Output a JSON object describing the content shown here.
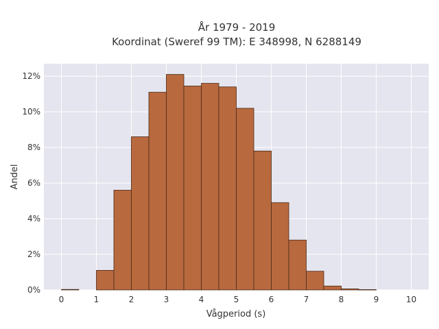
{
  "chart_data": {
    "type": "bar",
    "title_lines": [
      "År 1979 - 2019",
      "Koordinat (Sweref 99 TM): E 348998, N 6288149"
    ],
    "xlabel": "Vågperiod (s)",
    "ylabel": "Andel",
    "xlim": [
      -0.5,
      10.5
    ],
    "ylim": [
      0,
      12.7
    ],
    "x_ticks": [
      0,
      1,
      2,
      3,
      4,
      5,
      6,
      7,
      8,
      9,
      10
    ],
    "y_ticks": [
      0,
      2,
      4,
      6,
      8,
      10,
      12
    ],
    "y_tick_labels": [
      "0%",
      "2%",
      "4%",
      "6%",
      "8%",
      "10%",
      "12%"
    ],
    "bin_width": 0.5,
    "bins": [
      {
        "start": 0.0,
        "value": 0.03
      },
      {
        "start": 0.5,
        "value": 0.0
      },
      {
        "start": 1.0,
        "value": 1.1
      },
      {
        "start": 1.5,
        "value": 5.6
      },
      {
        "start": 2.0,
        "value": 8.6
      },
      {
        "start": 2.5,
        "value": 11.1
      },
      {
        "start": 3.0,
        "value": 12.1
      },
      {
        "start": 3.5,
        "value": 11.45
      },
      {
        "start": 4.0,
        "value": 11.6
      },
      {
        "start": 4.5,
        "value": 11.4
      },
      {
        "start": 5.0,
        "value": 10.2
      },
      {
        "start": 5.5,
        "value": 7.8
      },
      {
        "start": 6.0,
        "value": 4.9
      },
      {
        "start": 6.5,
        "value": 2.8
      },
      {
        "start": 7.0,
        "value": 1.05
      },
      {
        "start": 7.5,
        "value": 0.22
      },
      {
        "start": 8.0,
        "value": 0.06
      },
      {
        "start": 8.5,
        "value": 0.02
      }
    ],
    "grid": true,
    "colors": {
      "bar_fill": "#b8693e",
      "bar_edge": "#4a2a18",
      "plot_bg": "#e5e5ef",
      "grid": "#ffffff"
    }
  }
}
